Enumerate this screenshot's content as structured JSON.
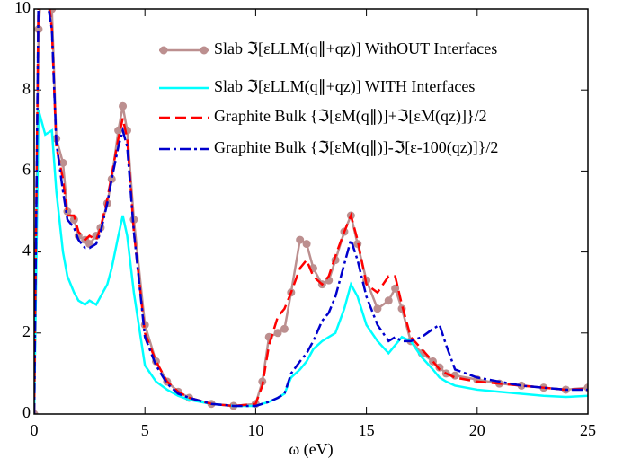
{
  "chart_data": {
    "type": "line",
    "xlabel": "ω (eV)",
    "xlim": [
      0,
      25
    ],
    "xticks": [
      0,
      5,
      10,
      15,
      20,
      25
    ],
    "ylim": [
      0,
      10
    ],
    "yticks": [
      0,
      2,
      4,
      6,
      8,
      10
    ],
    "legend": "upper right",
    "x": [
      0,
      0.2,
      0.5,
      0.8,
      1.0,
      1.3,
      1.5,
      1.8,
      2,
      2.3,
      2.5,
      2.8,
      3,
      3.3,
      3.5,
      3.8,
      4.0,
      4.2,
      4.5,
      5,
      5.5,
      6,
      6.5,
      7,
      8,
      9,
      10,
      10.3,
      10.6,
      11,
      11.3,
      11.6,
      12,
      12.3,
      12.6,
      13,
      13.3,
      13.6,
      14,
      14.3,
      14.6,
      15,
      15.5,
      16,
      16.3,
      16.6,
      17,
      17.5,
      18,
      18.3,
      18.6,
      19,
      20,
      21,
      22,
      23,
      24,
      25
    ],
    "series": [
      {
        "name": "Slab ℑ[εLLM(q∥+qz)] WithOUT Interfaces",
        "color": "#bc8f8f",
        "markers": true,
        "dash": "none",
        "values": [
          0,
          9.5,
          12,
          10,
          6.8,
          6.2,
          5.0,
          4.8,
          4.4,
          4.3,
          4.2,
          4.4,
          4.6,
          5.2,
          5.8,
          7.0,
          7.6,
          7.0,
          4.8,
          2.2,
          1.3,
          0.8,
          0.55,
          0.4,
          0.25,
          0.2,
          0.25,
          0.8,
          1.9,
          2.0,
          2.1,
          3.0,
          4.3,
          4.2,
          3.6,
          3.2,
          3.3,
          3.8,
          4.5,
          4.9,
          4.2,
          3.3,
          2.6,
          2.8,
          3.1,
          2.6,
          1.8,
          1.5,
          1.3,
          1.15,
          1.0,
          0.95,
          0.85,
          0.75,
          0.7,
          0.65,
          0.6,
          0.65
        ]
      },
      {
        "name": "Slab ℑ[εLLM(q∥+qz)] WITH Interfaces",
        "color": "#00ffff",
        "markers": false,
        "dash": "none",
        "values": [
          0,
          7.5,
          6.9,
          7.0,
          5.5,
          4.0,
          3.4,
          3.0,
          2.8,
          2.7,
          2.8,
          2.7,
          2.9,
          3.2,
          3.6,
          4.4,
          4.9,
          4.4,
          3.0,
          1.2,
          0.8,
          0.6,
          0.45,
          0.35,
          0.25,
          0.2,
          0.2,
          0.25,
          0.3,
          0.4,
          0.5,
          0.9,
          1.1,
          1.3,
          1.6,
          1.8,
          1.9,
          2.0,
          2.6,
          3.2,
          2.9,
          2.2,
          1.8,
          1.5,
          1.7,
          1.9,
          1.8,
          1.4,
          1.1,
          0.9,
          0.8,
          0.7,
          0.6,
          0.55,
          0.5,
          0.45,
          0.42,
          0.45
        ]
      },
      {
        "name": "Graphite Bulk {ℑ[εM(q∥)]+ℑ[εM(qz)]}/2",
        "color": "#ff0000",
        "markers": false,
        "dash": "12,6",
        "values": [
          0,
          10.5,
          11,
          9.5,
          6.6,
          5.8,
          4.9,
          4.9,
          4.5,
          4.3,
          4.4,
          4.3,
          4.6,
          5.3,
          5.9,
          6.8,
          7.3,
          6.8,
          4.5,
          2.0,
          1.3,
          0.8,
          0.55,
          0.4,
          0.25,
          0.2,
          0.25,
          0.7,
          1.7,
          2.4,
          2.6,
          3.0,
          3.6,
          3.8,
          3.4,
          3.2,
          3.4,
          3.9,
          4.5,
          4.9,
          4.3,
          3.2,
          3.0,
          3.4,
          3.4,
          2.7,
          1.9,
          1.6,
          1.3,
          1.1,
          1.0,
          0.9,
          0.8,
          0.75,
          0.7,
          0.65,
          0.6,
          0.62
        ]
      },
      {
        "name": "Graphite Bulk {ℑ[εM(q∥)]-ℑ[ε-100(qz)]}/2",
        "color": "#0000cd",
        "markers": false,
        "dash": "12,4,3,4",
        "values": [
          0,
          10.5,
          10.5,
          9.5,
          6.7,
          5.5,
          4.8,
          4.6,
          4.3,
          4.1,
          4.1,
          4.2,
          4.5,
          5.2,
          5.8,
          6.6,
          7.0,
          6.6,
          4.5,
          1.9,
          1.2,
          0.75,
          0.5,
          0.4,
          0.25,
          0.2,
          0.2,
          0.25,
          0.3,
          0.4,
          0.5,
          1.0,
          1.3,
          1.5,
          1.8,
          2.3,
          2.5,
          2.9,
          3.7,
          4.3,
          3.8,
          2.9,
          2.2,
          1.8,
          1.9,
          1.8,
          1.8,
          1.9,
          2.1,
          2.2,
          1.7,
          1.1,
          0.9,
          0.8,
          0.7,
          0.65,
          0.6,
          0.6
        ]
      }
    ]
  }
}
